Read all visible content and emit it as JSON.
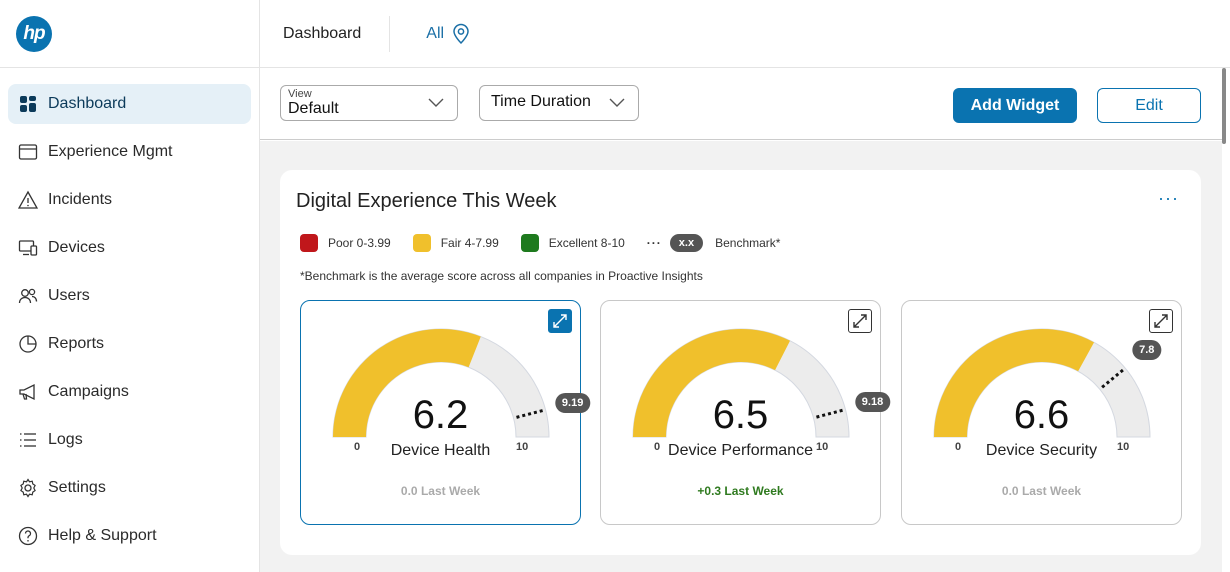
{
  "logo": "hp",
  "header": {
    "title": "Dashboard",
    "location": "All"
  },
  "sidebar": {
    "items": [
      {
        "label": "Dashboard",
        "icon": "dashboard-icon",
        "active": true
      },
      {
        "label": "Experience Mgmt",
        "icon": "window-icon"
      },
      {
        "label": "Incidents",
        "icon": "warning-icon"
      },
      {
        "label": "Devices",
        "icon": "devices-icon"
      },
      {
        "label": "Users",
        "icon": "users-icon"
      },
      {
        "label": "Reports",
        "icon": "pie-chart-icon"
      },
      {
        "label": "Campaigns",
        "icon": "megaphone-icon"
      },
      {
        "label": "Logs",
        "icon": "list-icon"
      },
      {
        "label": "Settings",
        "icon": "gear-icon"
      },
      {
        "label": "Help & Support",
        "icon": "help-icon"
      }
    ]
  },
  "toolbar": {
    "view_label": "View",
    "view_value": "Default",
    "time_label": "Time Duration",
    "add_widget": "Add Widget",
    "edit": "Edit"
  },
  "widget": {
    "title": "Digital Experience This Week",
    "more": "···",
    "legend": [
      {
        "label": "Poor 0-3.99",
        "color": "#c0171b"
      },
      {
        "label": "Fair 4-7.99",
        "color": "#f0c02c"
      },
      {
        "label": "Excellent 8-10",
        "color": "#1e7a1e"
      }
    ],
    "benchmark_badge": "x.x",
    "benchmark_label": "Benchmark*",
    "note": "*Benchmark is the average score across all companies in Proactive Insights",
    "gauges": [
      {
        "name": "Device Health",
        "value": 6.2,
        "display": "6.2",
        "benchmark": 9.19,
        "benchmark_display": "9.19",
        "min": "0",
        "max": "10",
        "last_week": "0.0 Last Week",
        "trend": "neutral",
        "selected": true
      },
      {
        "name": "Device Performance",
        "value": 6.5,
        "display": "6.5",
        "benchmark": 9.18,
        "benchmark_display": "9.18",
        "min": "0",
        "max": "10",
        "last_week": "+0.3 Last Week",
        "trend": "positive",
        "selected": false
      },
      {
        "name": "Device Security",
        "value": 6.6,
        "display": "6.6",
        "benchmark": 7.8,
        "benchmark_display": "7.8",
        "min": "0",
        "max": "10",
        "last_week": "0.0 Last Week",
        "trend": "neutral",
        "selected": false
      }
    ]
  },
  "colors": {
    "accent": "#0a73b0",
    "fair": "#f0c02c",
    "track": "#ececec"
  }
}
